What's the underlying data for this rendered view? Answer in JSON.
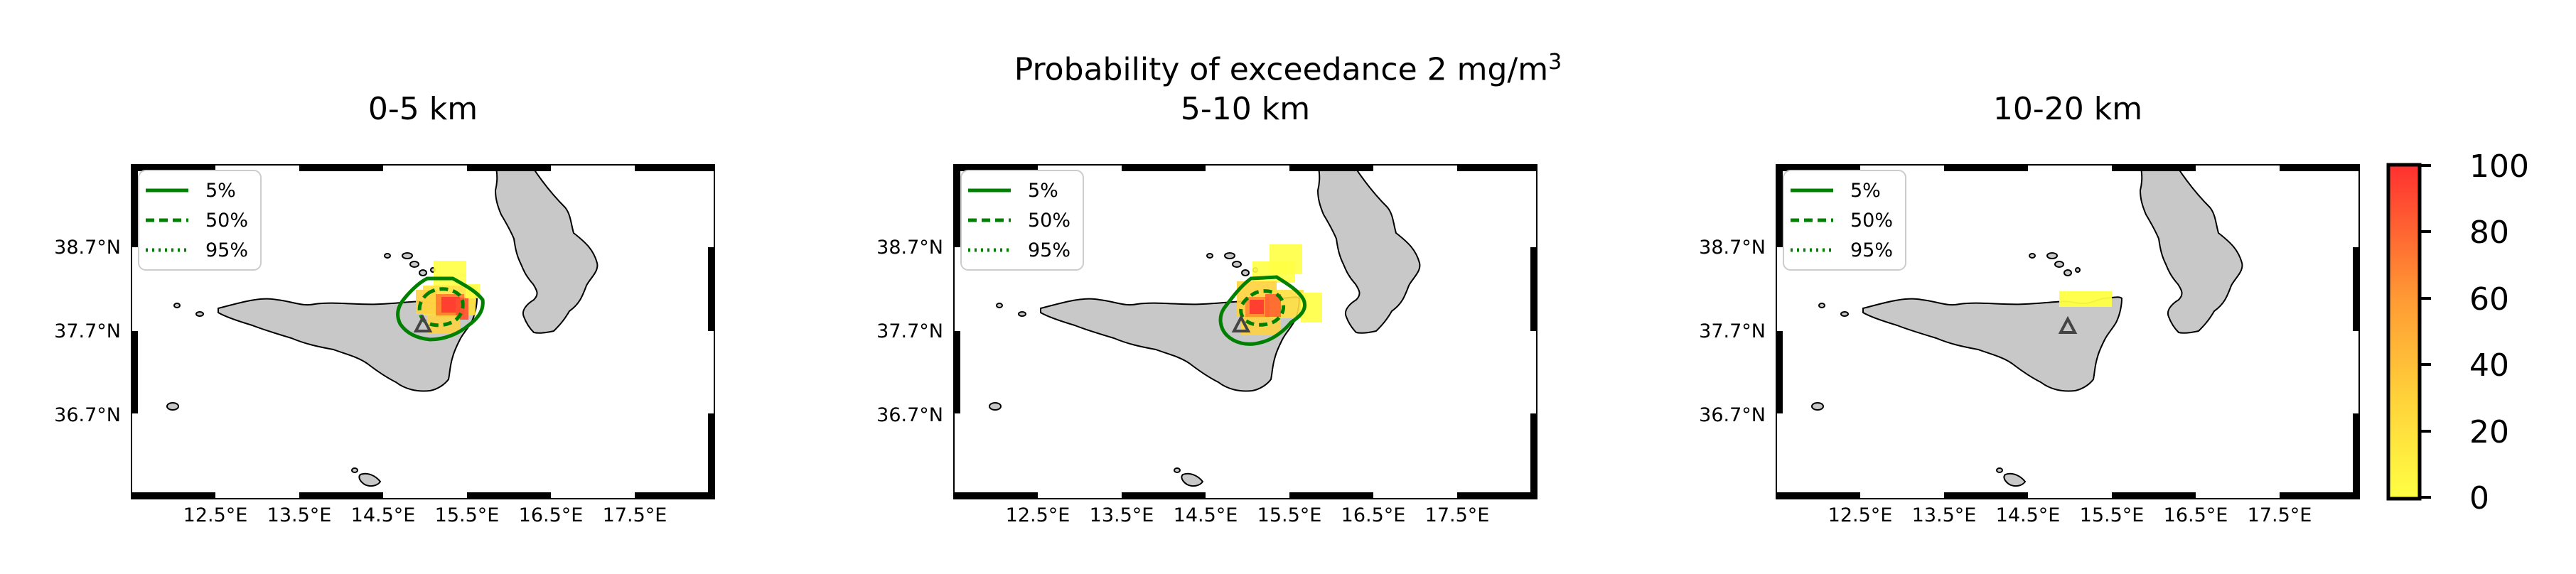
{
  "figure": {
    "suptitle": "Probability of exceedance 2 mg/m",
    "suptitle_sup": "3"
  },
  "panels": [
    {
      "title": "0-5 km"
    },
    {
      "title": "5-10 km"
    },
    {
      "title": "10-20 km"
    }
  ],
  "axes": {
    "lat_ticks": [
      "38.7°N",
      "37.7°N",
      "36.7°N"
    ],
    "lon_ticks": [
      "12.5°E",
      "13.5°E",
      "14.5°E",
      "15.5°E",
      "16.5°E",
      "17.5°E"
    ]
  },
  "legend": [
    {
      "label": "5%",
      "style": "solid"
    },
    {
      "label": "50%",
      "style": "dashed"
    },
    {
      "label": "95%",
      "style": "dotted"
    }
  ],
  "colorbar": {
    "ticks": [
      "0",
      "20",
      "40",
      "60",
      "80",
      "100"
    ],
    "colors": [
      "#ffff44",
      "#ff3030"
    ]
  },
  "colors": {
    "contour": "#008000",
    "land": "#c8c8c8",
    "vent": "#444444"
  }
}
